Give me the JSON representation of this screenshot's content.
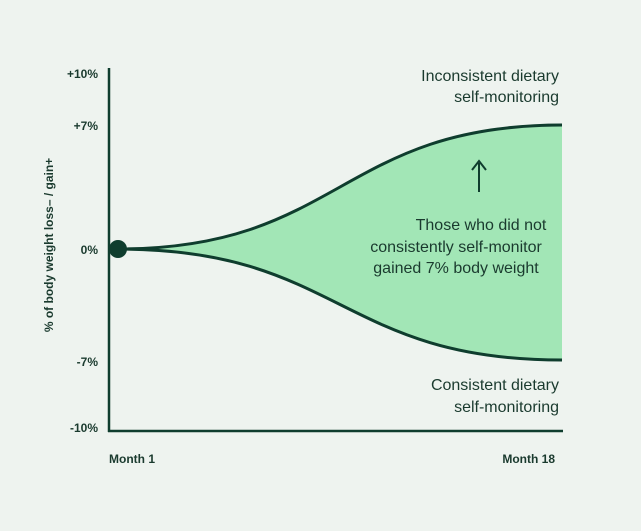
{
  "chart_data": {
    "type": "area",
    "title": "",
    "xlabel": "",
    "ylabel": "% of body weight loss– / gain+",
    "x_ticks": [
      "Month 1",
      "Month 18"
    ],
    "y_ticks": [
      "+10%",
      "+7%",
      "0%",
      "-7%",
      "-10%"
    ],
    "y_tick_values": [
      10,
      7,
      0,
      -7,
      -10
    ],
    "ylim": [
      -10,
      10
    ],
    "x": [
      1,
      18
    ],
    "series": [
      {
        "name": "Inconsistent dietary self-monitoring",
        "start": 0,
        "end": 7
      },
      {
        "name": "Consistent dietary self-monitoring",
        "start": 0,
        "end": -7
      }
    ],
    "annotation": "Those who did not consistently self-monitor gained 7% body weight",
    "colors": {
      "line": "#0f3d2e",
      "fill": "#a2e6b6",
      "text": "#1a3a2e",
      "background": "#eef3ef"
    }
  },
  "labels": {
    "upper_line1": "Inconsistent dietary",
    "upper_line2": "self-monitoring",
    "lower_line1": "Consistent dietary",
    "lower_line2": "self-monitoring",
    "annotation_line1": "Those who did not",
    "annotation_line2": "consistently self-monitor",
    "annotation_line3": "gained 7% body weight"
  }
}
